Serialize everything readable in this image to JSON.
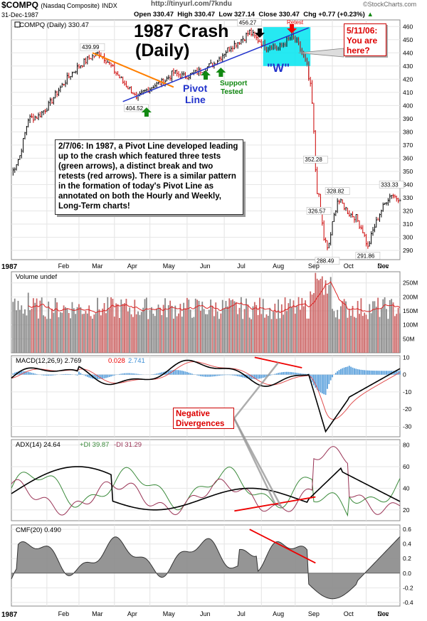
{
  "header": {
    "symbol": "$COMPQ",
    "name": "(Nasdaq Composite)",
    "exchange": "INDX",
    "url": "http://tinyurl.com/7kndu",
    "brand": "©StockCharts.com",
    "date": "31-Dec-1987",
    "open": "Open 330.47",
    "high": "High 330.47",
    "low": "Low 327.14",
    "close": "Close 330.47",
    "chg": "Chg +0.77 (+0.23%)"
  },
  "annotations": {
    "title": "1987 Crash",
    "subtitle": "(Daily)",
    "pivot_line": "Pivot",
    "pivot_line2": "Line",
    "support": "Support",
    "support2": "Tested",
    "w_label": "\"W\"",
    "retest": "Retest",
    "callout": "5/11/06: You are here?",
    "note": "2/7/06: In 1987, a Pivot Line developed leading up to the crash which featured three tests (green arrows), a distinct break and two retests (red arrows).  There is a similar pattern in the formation of today's Pivot Line as annotated on both the Hourly and Weekly, Long-Term charts!",
    "neg_div": "Negative Divergences"
  },
  "chart_data": {
    "type": "line",
    "title": "$COMPQ (Daily) 330.47",
    "year_label": "1987",
    "months": [
      "Feb",
      "Mar",
      "Apr",
      "May",
      "Jun",
      "Jul",
      "Aug",
      "Sep",
      "Oct",
      "Nov",
      "Dec"
    ],
    "price": {
      "ylim": [
        283,
        465
      ],
      "ticks": [
        290,
        300,
        310,
        320,
        330,
        340,
        350,
        360,
        370,
        380,
        390,
        400,
        410,
        420,
        430,
        440,
        450,
        460
      ],
      "keypoints_day_price": [
        [
          0,
          348
        ],
        [
          5,
          362
        ],
        [
          10,
          390
        ],
        [
          16,
          392
        ],
        [
          22,
          400
        ],
        [
          28,
          412
        ],
        [
          34,
          422
        ],
        [
          40,
          430
        ],
        [
          46,
          436
        ],
        [
          52,
          440
        ],
        [
          56,
          435
        ],
        [
          60,
          428
        ],
        [
          66,
          418
        ],
        [
          72,
          410
        ],
        [
          74,
          404
        ],
        [
          78,
          410
        ],
        [
          84,
          415
        ],
        [
          90,
          418
        ],
        [
          96,
          425
        ],
        [
          102,
          422
        ],
        [
          108,
          424
        ],
        [
          114,
          428
        ],
        [
          120,
          432
        ],
        [
          126,
          440
        ],
        [
          130,
          445
        ],
        [
          134,
          448
        ],
        [
          138,
          452
        ],
        [
          141,
          456
        ],
        [
          144,
          452
        ],
        [
          148,
          448
        ],
        [
          151,
          444
        ],
        [
          154,
          446
        ],
        [
          158,
          443
        ],
        [
          162,
          448
        ],
        [
          166,
          452
        ],
        [
          169,
          448
        ],
        [
          172,
          440
        ],
        [
          175,
          430
        ],
        [
          178,
          400
        ],
        [
          180,
          352
        ],
        [
          182,
          326
        ],
        [
          185,
          300
        ],
        [
          187,
          288
        ],
        [
          190,
          310
        ],
        [
          193,
          328
        ],
        [
          196,
          325
        ],
        [
          200,
          318
        ],
        [
          204,
          315
        ],
        [
          208,
          305
        ],
        [
          211,
          292
        ],
        [
          214,
          305
        ],
        [
          218,
          318
        ],
        [
          222,
          328
        ],
        [
          225,
          333
        ],
        [
          228,
          330
        ],
        [
          230,
          330
        ]
      ],
      "labels": [
        {
          "day": 48,
          "v": "439.99"
        },
        {
          "day": 74,
          "v": "404.52"
        },
        {
          "day": 141,
          "v": "456.27"
        },
        {
          "day": 180,
          "v": "352.28"
        },
        {
          "day": 182,
          "v": "326.57"
        },
        {
          "day": 193,
          "v": "328.82"
        },
        {
          "day": 187,
          "v": "288.49"
        },
        {
          "day": 211,
          "v": "291.86"
        },
        {
          "day": 225,
          "v": "333.33"
        }
      ]
    },
    "volume": {
      "title": "Volume undef",
      "ylim": [
        0,
        290
      ],
      "ticks": [
        [
          "50M",
          50
        ],
        [
          "100M",
          100
        ],
        [
          "150M",
          150
        ],
        [
          "200M",
          200
        ],
        [
          "250M",
          250
        ]
      ]
    },
    "macd": {
      "title": "MACD(12,26,9) 2.769",
      "signal": "0.028",
      "hist": "2.741",
      "ylim": [
        -36,
        11
      ],
      "ticks": [
        10,
        0,
        -10,
        -20,
        -30
      ]
    },
    "adx": {
      "title": "ADX(14) 24.64",
      "pdi": "+DI 39.87",
      "mdi": "-DI 31.29",
      "ylim": [
        10,
        85
      ],
      "ticks": [
        20,
        40,
        60,
        80
      ]
    },
    "cmf": {
      "title": "CMF(20) 0.490",
      "ylim": [
        -0.45,
        0.66
      ],
      "ticks": [
        [
          "0.6",
          0.6
        ],
        [
          "0.4",
          0.4
        ],
        [
          "0.2",
          0.2
        ],
        [
          "0.0",
          0
        ],
        [
          "-0.2",
          -0.2
        ],
        [
          "-0.4",
          -0.4
        ]
      ]
    },
    "colors": {
      "up": "#000000",
      "down": "#cc0000",
      "vol_gray": "#888888",
      "vol_red": "#cc6666",
      "macd_hist": "#3d8fd6",
      "cyan": "#00e5f0",
      "orange": "#ff7f00",
      "blue": "#2233cc",
      "green": "#118811",
      "pdi": "#3a8a3a",
      "mdi": "#993355",
      "cmf_fill": "#8a8a8a",
      "cmf_neg": "#c89090"
    }
  }
}
